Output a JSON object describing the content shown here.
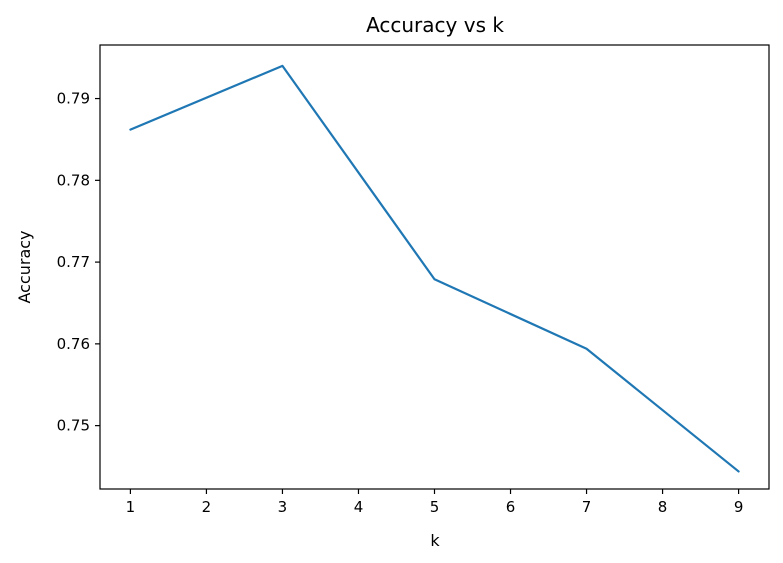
{
  "chart_data": {
    "type": "line",
    "title": "Accuracy vs k",
    "xlabel": "k",
    "ylabel": "Accuracy",
    "x": [
      1,
      3,
      5,
      7,
      9
    ],
    "series": [
      {
        "values": [
          0.7862,
          0.794,
          0.7679,
          0.7594,
          0.7444
        ],
        "color": "#1f77b4"
      }
    ],
    "xlim": [
      0.6,
      9.4
    ],
    "ylim": [
      0.74225,
      0.79655
    ],
    "xticks": [
      "1",
      "2",
      "3",
      "4",
      "5",
      "6",
      "7",
      "8",
      "9"
    ],
    "yticks": [
      "0.75",
      "0.76",
      "0.77",
      "0.78",
      "0.79"
    ],
    "grid": false,
    "legend": "none"
  }
}
